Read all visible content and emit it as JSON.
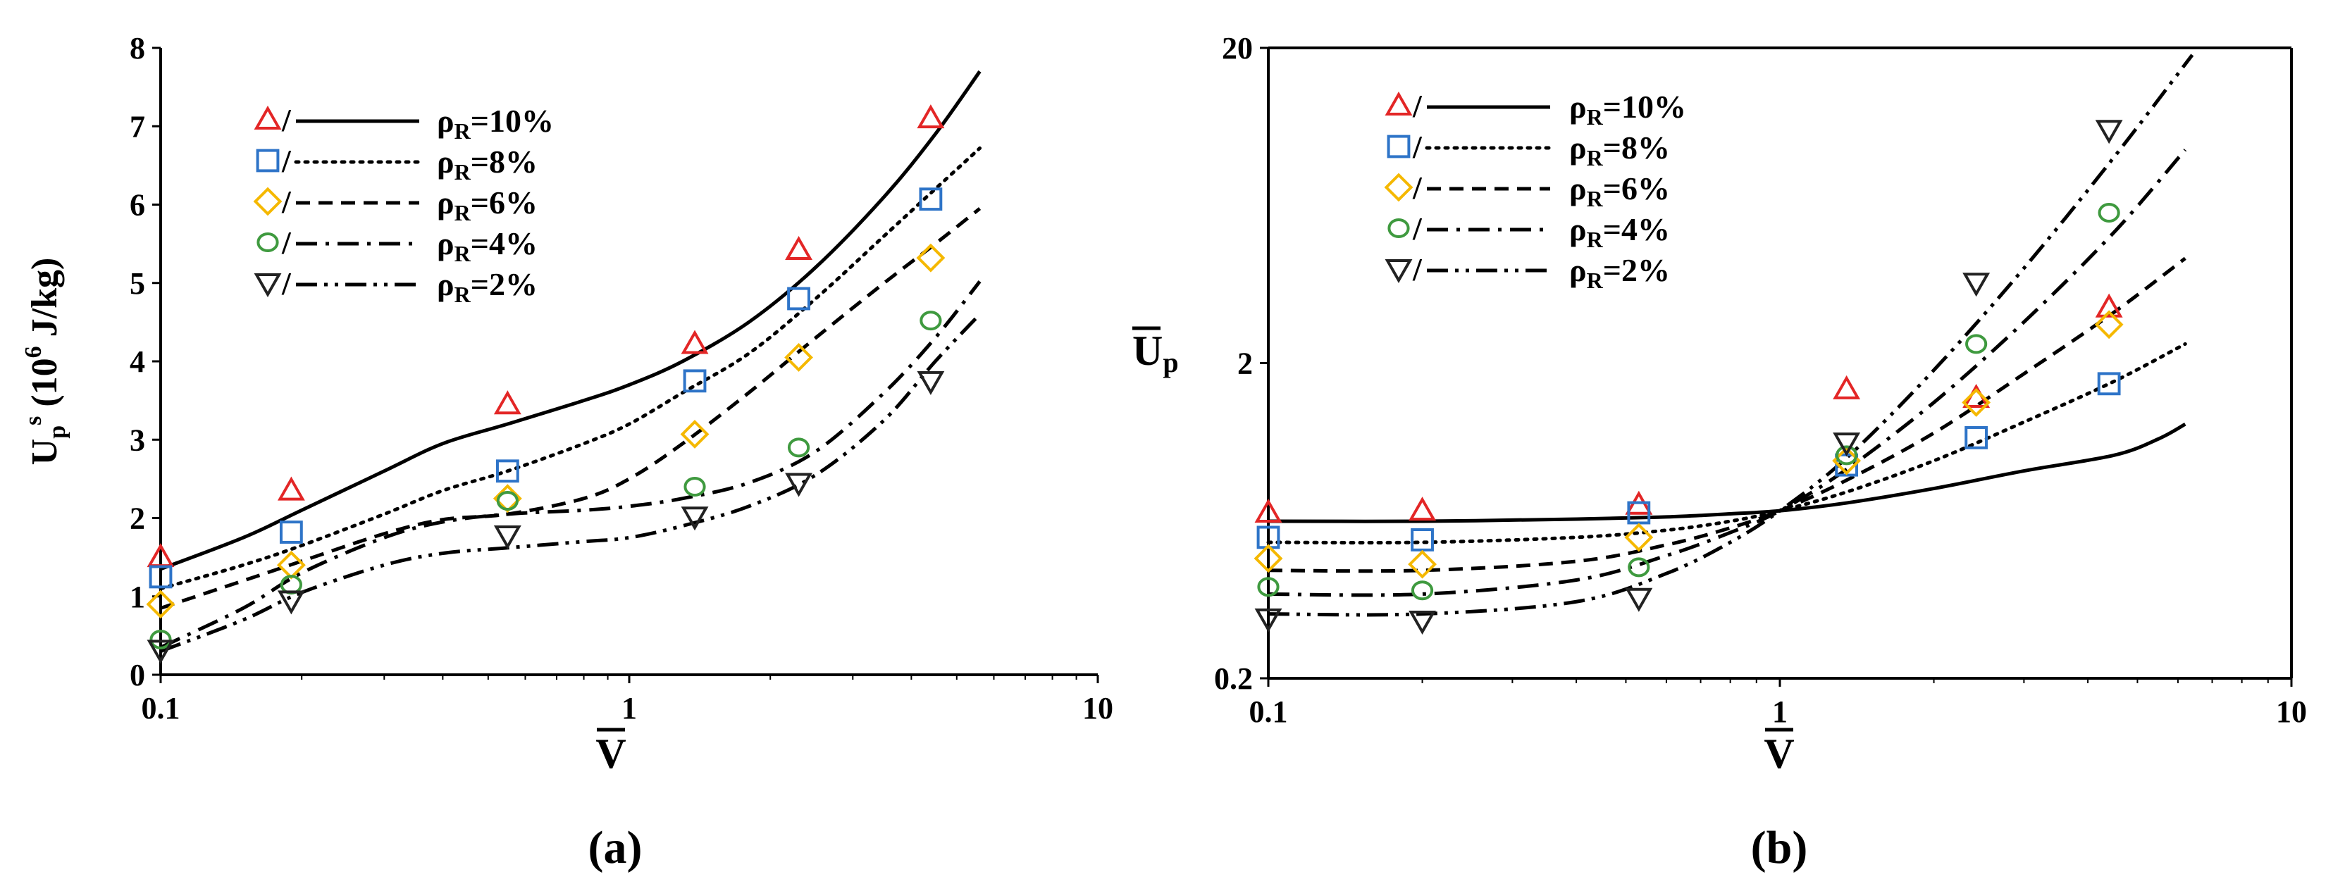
{
  "colors": {
    "rho10": "#e32626",
    "rho8": "#2e74c8",
    "rho6": "#f5b800",
    "rho4": "#3f9a3f",
    "rho2": "#222222",
    "line": "#000000"
  },
  "chart_data": [
    {
      "type": "scatter",
      "panel_label": "(a)",
      "xlabel": "V",
      "ylabel": "U_p^s (10^6 J/kg)",
      "ylabel_parts": {
        "U": "U",
        "p": "p",
        "s": "s",
        "unit_open": " (10",
        "six": "6",
        "unit_close": " J/kg)"
      },
      "xscale": "log",
      "xlim": [
        0.1,
        10
      ],
      "ylim": [
        0,
        8
      ],
      "xticks": [
        "0.1",
        "1",
        "10"
      ],
      "yticks": [
        "0",
        "1",
        "2",
        "3",
        "4",
        "5",
        "6",
        "7",
        "8"
      ],
      "legend_position": "top-left",
      "series": [
        {
          "name": "ρR=10%",
          "sym": "ρ",
          "sub": "R",
          "rest": "=10%",
          "marker": "triangle-up",
          "color_key": "rho10",
          "dash": "solid",
          "x": [
            0.1,
            0.19,
            0.55,
            1.38,
            2.3,
            4.4
          ],
          "y": [
            1.5,
            2.35,
            3.45,
            4.22,
            5.42,
            7.1
          ],
          "fit_x": [
            0.1,
            0.15,
            0.2,
            0.3,
            0.4,
            0.55,
            0.8,
            1.0,
            1.3,
            1.8,
            2.5,
            3.5,
            4.5,
            5.6
          ],
          "fit_y": [
            1.35,
            1.75,
            2.1,
            2.6,
            2.95,
            3.2,
            3.5,
            3.7,
            4.0,
            4.5,
            5.2,
            6.1,
            6.9,
            7.7
          ]
        },
        {
          "name": "ρR=8%",
          "sym": "ρ",
          "sub": "R",
          "rest": "=8%",
          "marker": "square",
          "color_key": "rho8",
          "dash": "dotted",
          "x": [
            0.1,
            0.19,
            0.55,
            1.38,
            2.3,
            4.4
          ],
          "y": [
            1.25,
            1.82,
            2.6,
            3.75,
            4.8,
            6.07
          ],
          "fit_x": [
            0.1,
            0.15,
            0.2,
            0.3,
            0.4,
            0.55,
            0.8,
            1.0,
            1.3,
            1.8,
            2.5,
            3.5,
            4.5,
            5.6
          ],
          "fit_y": [
            1.1,
            1.4,
            1.65,
            2.05,
            2.35,
            2.6,
            2.95,
            3.2,
            3.6,
            4.1,
            4.8,
            5.6,
            6.2,
            6.72
          ]
        },
        {
          "name": "ρR=6%",
          "sym": "ρ",
          "sub": "R",
          "rest": "=6%",
          "marker": "diamond",
          "color_key": "rho6",
          "dash": "dashed",
          "x": [
            0.1,
            0.19,
            0.55,
            1.38,
            2.3,
            4.4
          ],
          "y": [
            0.9,
            1.4,
            2.25,
            3.07,
            4.05,
            5.32
          ],
          "fit_x": [
            0.1,
            0.15,
            0.2,
            0.3,
            0.4,
            0.55,
            0.8,
            1.0,
            1.3,
            1.8,
            2.5,
            3.5,
            4.5,
            5.6
          ],
          "fit_y": [
            0.85,
            1.2,
            1.45,
            1.8,
            1.98,
            2.05,
            2.25,
            2.5,
            2.95,
            3.6,
            4.3,
            5.0,
            5.5,
            5.95
          ]
        },
        {
          "name": "ρR=4%",
          "sym": "ρ",
          "sub": "R",
          "rest": "=4%",
          "marker": "circle",
          "color_key": "rho4",
          "dash": "dashdot",
          "x": [
            0.1,
            0.19,
            0.55,
            1.38,
            2.3,
            4.4
          ],
          "y": [
            0.45,
            1.15,
            2.22,
            2.4,
            2.9,
            4.52
          ],
          "fit_x": [
            0.1,
            0.15,
            0.2,
            0.3,
            0.4,
            0.55,
            0.8,
            1.0,
            1.3,
            1.8,
            2.5,
            3.5,
            4.5,
            5.6
          ],
          "fit_y": [
            0.35,
            0.85,
            1.3,
            1.75,
            1.95,
            2.05,
            2.1,
            2.15,
            2.25,
            2.45,
            2.85,
            3.6,
            4.3,
            5.02
          ]
        },
        {
          "name": "ρR=2%",
          "sym": "ρ",
          "sub": "R",
          "rest": "=2%",
          "marker": "triangle-down",
          "color_key": "rho2",
          "dash": "dashdotdot",
          "x": [
            0.1,
            0.19,
            0.55,
            1.38,
            2.3,
            4.4
          ],
          "y": [
            0.32,
            0.95,
            1.78,
            2.02,
            2.45,
            3.75
          ],
          "fit_x": [
            0.1,
            0.15,
            0.2,
            0.3,
            0.4,
            0.55,
            0.8,
            1.0,
            1.3,
            1.8,
            2.5,
            3.5,
            4.5,
            5.6
          ],
          "fit_y": [
            0.3,
            0.7,
            1.05,
            1.4,
            1.55,
            1.62,
            1.7,
            1.75,
            1.9,
            2.15,
            2.55,
            3.25,
            4.0,
            4.6
          ]
        }
      ]
    },
    {
      "type": "scatter",
      "panel_label": "(b)",
      "xlabel": "V",
      "ylabel": "Up",
      "ylabel_parts": {
        "U": "U",
        "p": "p"
      },
      "xscale": "log",
      "yscale": "log",
      "xlim": [
        0.1,
        10
      ],
      "ylim": [
        0.2,
        20
      ],
      "xticks": [
        "0.1",
        "1",
        "10"
      ],
      "yticks": [
        "0.2",
        "2",
        "20"
      ],
      "legend_position": "top-left",
      "series": [
        {
          "name": "ρR=10%",
          "sym": "ρ",
          "sub": "R",
          "rest": "=10%",
          "marker": "triangle-up",
          "color_key": "rho10",
          "dash": "solid",
          "x": [
            0.1,
            0.2,
            0.53,
            1.35,
            2.42,
            4.4
          ],
          "y": [
            0.67,
            0.68,
            0.71,
            1.65,
            1.55,
            3.0
          ],
          "fit_x": [
            0.1,
            0.2,
            0.4,
            0.6,
            0.8,
            1.0,
            1.35,
            2.0,
            3.0,
            4.5,
            5.5,
            6.2
          ],
          "fit_y": [
            0.63,
            0.63,
            0.64,
            0.65,
            0.665,
            0.68,
            0.72,
            0.8,
            0.91,
            1.02,
            1.15,
            1.28
          ]
        },
        {
          "name": "ρR=8%",
          "sym": "ρ",
          "sub": "R",
          "rest": "=8%",
          "marker": "square",
          "color_key": "rho8",
          "dash": "dotted",
          "x": [
            0.1,
            0.2,
            0.53,
            1.35,
            2.42,
            4.4
          ],
          "y": [
            0.56,
            0.55,
            0.67,
            0.95,
            1.16,
            1.72
          ],
          "fit_x": [
            0.1,
            0.2,
            0.4,
            0.6,
            0.8,
            1.0,
            1.35,
            2.0,
            3.0,
            4.5,
            6.2
          ],
          "fit_y": [
            0.54,
            0.54,
            0.56,
            0.59,
            0.63,
            0.68,
            0.78,
            0.98,
            1.3,
            1.75,
            2.3
          ]
        },
        {
          "name": "ρR=6%",
          "sym": "ρ",
          "sub": "R",
          "rest": "=6%",
          "marker": "diamond",
          "color_key": "rho6",
          "dash": "dashed",
          "x": [
            0.1,
            0.2,
            0.53,
            1.35,
            2.42,
            4.4
          ],
          "y": [
            0.48,
            0.46,
            0.56,
            0.98,
            1.5,
            2.65
          ],
          "fit_x": [
            0.1,
            0.2,
            0.4,
            0.6,
            0.8,
            1.0,
            1.35,
            2.0,
            3.0,
            4.5,
            6.2
          ],
          "fit_y": [
            0.44,
            0.44,
            0.47,
            0.53,
            0.6,
            0.68,
            0.85,
            1.2,
            1.85,
            2.9,
            4.3
          ]
        },
        {
          "name": "ρR=4%",
          "sym": "ρ",
          "sub": "R",
          "rest": "=4%",
          "marker": "circle",
          "color_key": "rho4",
          "dash": "dashdot",
          "x": [
            0.1,
            0.2,
            0.53,
            1.35,
            2.42,
            4.4
          ],
          "y": [
            0.39,
            0.38,
            0.45,
            1.02,
            2.3,
            6.0
          ],
          "fit_x": [
            0.1,
            0.2,
            0.4,
            0.6,
            0.8,
            1.0,
            1.35,
            2.0,
            3.0,
            4.5,
            6.2
          ],
          "fit_y": [
            0.37,
            0.37,
            0.41,
            0.49,
            0.58,
            0.68,
            0.92,
            1.5,
            2.7,
            5.2,
            9.5
          ]
        },
        {
          "name": "ρR=2%",
          "sym": "ρ",
          "sub": "R",
          "rest": "=2%",
          "marker": "triangle-down",
          "color_key": "rho2",
          "dash": "dashdotdot",
          "x": [
            0.1,
            0.2,
            0.53,
            1.35,
            2.42,
            4.4
          ],
          "y": [
            0.31,
            0.305,
            0.36,
            1.12,
            3.6,
            11.0
          ],
          "fit_x": [
            0.1,
            0.2,
            0.4,
            0.6,
            0.8,
            1.0,
            1.35,
            2.0,
            3.0,
            4.5,
            6.4
          ],
          "fit_y": [
            0.32,
            0.32,
            0.35,
            0.43,
            0.54,
            0.68,
            1.0,
            1.9,
            4.0,
            9.0,
            19.0
          ]
        }
      ]
    }
  ]
}
